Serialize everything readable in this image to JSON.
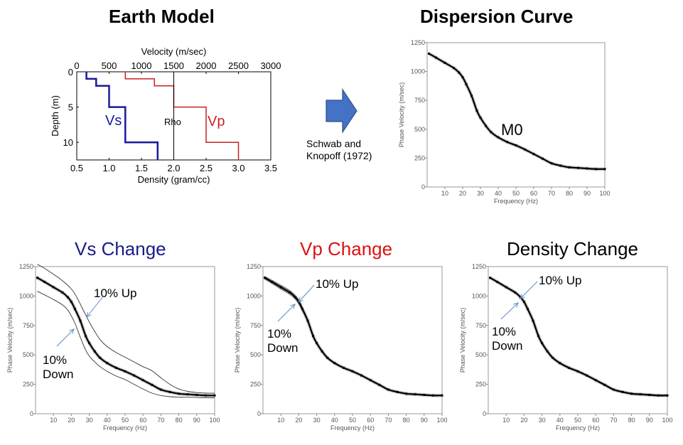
{
  "titles": {
    "earth_model": "Earth Model",
    "dispersion_curve": "Dispersion Curve",
    "vs_change": "Vs Change",
    "vp_change": "Vp Change",
    "density_change": "Density Change"
  },
  "colors": {
    "vs": "#1a1a9c",
    "vp": "#cc2020",
    "arrow_fill": "#4472c4",
    "annotation_arrow": "#5b8cc8",
    "vs_title": "#1a1a8a",
    "vp_title": "#dd1111",
    "density_title": "#000000"
  },
  "method": {
    "line1": "Schwab and",
    "line2": "Knopoff (1972)"
  },
  "chart_data": [
    {
      "id": "earth_model",
      "type": "line",
      "title": "Earth Model",
      "xlabel_top": "Velocity (m/sec)",
      "xlabel_bottom": "Density (gram/cc)",
      "ylabel": "Depth (m)",
      "x_top_range": [
        0,
        3000
      ],
      "x_top_ticks": [
        "0",
        "500",
        "1000",
        "1500",
        "2000",
        "2500",
        "3000"
      ],
      "x_bottom_range": [
        0.5,
        3.5
      ],
      "x_bottom_ticks": [
        "0.5",
        "1.0",
        "1.5",
        "2.0",
        "2.5",
        "3.0",
        "3.5"
      ],
      "y_range": [
        0,
        12.5
      ],
      "y_ticks": [
        "0",
        "5",
        "10"
      ],
      "y_inverted": true,
      "series": [
        {
          "name": "Vs",
          "label": "Vs",
          "axis": "velocity",
          "points": [
            [
              150,
              0
            ],
            [
              150,
              1
            ],
            [
              300,
              1
            ],
            [
              300,
              2
            ],
            [
              500,
              2
            ],
            [
              500,
              5
            ],
            [
              750,
              5
            ],
            [
              750,
              10
            ],
            [
              1250,
              10
            ],
            [
              1250,
              12.5
            ]
          ]
        },
        {
          "name": "Vp",
          "label": "Vp",
          "axis": "velocity",
          "points": [
            [
              750,
              0
            ],
            [
              750,
              1
            ],
            [
              1200,
              1
            ],
            [
              1200,
              2
            ],
            [
              1500,
              2
            ],
            [
              1500,
              5
            ],
            [
              2000,
              5
            ],
            [
              2000,
              10
            ],
            [
              2500,
              10
            ],
            [
              2500,
              12.5
            ]
          ]
        },
        {
          "name": "Rho",
          "label": "Rho",
          "axis": "density",
          "points": [
            [
              2.0,
              0
            ],
            [
              2.0,
              12.5
            ]
          ]
        }
      ]
    },
    {
      "id": "dispersion_curve",
      "type": "line",
      "title": "Dispersion Curve",
      "xlabel": "Frequency (Hz)",
      "ylabel": "Phase Velocity (m/sec)",
      "xlim": [
        0,
        100
      ],
      "ylim": [
        0,
        1250
      ],
      "x_ticks": [
        "10",
        "20",
        "30",
        "40",
        "50",
        "60",
        "70",
        "80",
        "90",
        "100"
      ],
      "y_ticks": [
        "0",
        "250",
        "500",
        "750",
        "1000",
        "1250"
      ],
      "annotation": "M0",
      "series": [
        {
          "name": "M0",
          "x": [
            1,
            5,
            10,
            15,
            18,
            20,
            22,
            25,
            28,
            30,
            33,
            36,
            40,
            45,
            50,
            55,
            60,
            65,
            70,
            75,
            80,
            85,
            90,
            95,
            100
          ],
          "y": [
            1155,
            1120,
            1075,
            1030,
            990,
            950,
            890,
            790,
            660,
            600,
            530,
            475,
            430,
            390,
            360,
            325,
            285,
            245,
            205,
            185,
            170,
            165,
            160,
            155,
            155
          ]
        }
      ]
    },
    {
      "id": "vs_change",
      "type": "line",
      "title": "Vs Change",
      "xlabel": "Frequency (Hz)",
      "ylabel": "Phase Velocity (m/sec)",
      "xlim": [
        0,
        100
      ],
      "ylim": [
        0,
        1250
      ],
      "x_ticks": [
        "10",
        "20",
        "30",
        "40",
        "50",
        "60",
        "70",
        "80",
        "90",
        "100"
      ],
      "y_ticks": [
        "0",
        "250",
        "500",
        "750",
        "1000",
        "1250"
      ],
      "annotations": [
        "10% Up",
        "10%",
        "Down"
      ],
      "series": [
        {
          "name": "M0",
          "x": [
            1,
            5,
            10,
            15,
            18,
            20,
            22,
            25,
            28,
            30,
            33,
            36,
            40,
            45,
            50,
            55,
            60,
            65,
            70,
            75,
            80,
            85,
            90,
            95,
            100
          ],
          "y": [
            1155,
            1120,
            1075,
            1030,
            990,
            950,
            890,
            790,
            660,
            600,
            530,
            475,
            430,
            390,
            360,
            325,
            285,
            245,
            205,
            185,
            170,
            165,
            160,
            155,
            155
          ]
        },
        {
          "name": "10% Up",
          "x": [
            1,
            5,
            10,
            15,
            20,
            23,
            26,
            30,
            33,
            36,
            40,
            45,
            50,
            55,
            60,
            65,
            70,
            75,
            80,
            85,
            90,
            95,
            100
          ],
          "y": [
            1270,
            1235,
            1185,
            1130,
            1060,
            990,
            900,
            780,
            700,
            630,
            570,
            520,
            480,
            440,
            400,
            365,
            305,
            250,
            210,
            190,
            180,
            175,
            175
          ]
        },
        {
          "name": "10% Down",
          "x": [
            1,
            5,
            10,
            15,
            18,
            20,
            22,
            25,
            28,
            30,
            33,
            36,
            40,
            45,
            50,
            55,
            60,
            65,
            70,
            75,
            80,
            85,
            90,
            95,
            100
          ],
          "y": [
            1040,
            1010,
            970,
            925,
            880,
            830,
            770,
            650,
            540,
            490,
            440,
            400,
            360,
            320,
            290,
            250,
            210,
            175,
            155,
            145,
            140,
            140,
            138,
            135,
            135
          ]
        }
      ]
    },
    {
      "id": "vp_change",
      "type": "line",
      "title": "Vp Change",
      "xlabel": "Frequency (Hz)",
      "ylabel": "Phase Velocity (m/sec)",
      "xlim": [
        0,
        100
      ],
      "ylim": [
        0,
        1250
      ],
      "x_ticks": [
        "10",
        "20",
        "30",
        "40",
        "50",
        "60",
        "70",
        "80",
        "90",
        "100"
      ],
      "y_ticks": [
        "0",
        "250",
        "500",
        "750",
        "1000",
        "1250"
      ],
      "annotations": [
        "10% Up",
        "10%",
        "Down"
      ],
      "series": [
        {
          "name": "M0",
          "x": [
            1,
            5,
            10,
            15,
            18,
            20,
            22,
            25,
            28,
            30,
            33,
            36,
            40,
            45,
            50,
            55,
            60,
            65,
            70,
            75,
            80,
            85,
            90,
            95,
            100
          ],
          "y": [
            1155,
            1120,
            1075,
            1030,
            990,
            950,
            890,
            790,
            660,
            600,
            530,
            475,
            430,
            390,
            360,
            325,
            285,
            245,
            205,
            185,
            170,
            165,
            160,
            155,
            155
          ]
        },
        {
          "name": "10% Up",
          "x": [
            1,
            5,
            10,
            15,
            18,
            20,
            22,
            25,
            28,
            30,
            33,
            36,
            40,
            45,
            50,
            55,
            60,
            65,
            70,
            75,
            80,
            85,
            90,
            95,
            100
          ],
          "y": [
            1165,
            1132,
            1090,
            1045,
            1005,
            965,
            900,
            795,
            662,
            602,
            532,
            476,
            431,
            391,
            361,
            326,
            286,
            246,
            206,
            186,
            171,
            166,
            161,
            156,
            156
          ]
        },
        {
          "name": "10% Down",
          "x": [
            1,
            5,
            10,
            15,
            18,
            20,
            22,
            25,
            28,
            30,
            33,
            36,
            40,
            45,
            50,
            55,
            60,
            65,
            70,
            75,
            80,
            85,
            90,
            95,
            100
          ],
          "y": [
            1145,
            1108,
            1060,
            1015,
            975,
            935,
            880,
            785,
            658,
            598,
            528,
            474,
            429,
            389,
            359,
            324,
            284,
            244,
            204,
            184,
            169,
            164,
            159,
            154,
            154
          ]
        }
      ]
    },
    {
      "id": "density_change",
      "type": "line",
      "title": "Density Change",
      "xlabel": "Frequency (Hz)",
      "ylabel": "Phase Velocity (m/sec)",
      "xlim": [
        0,
        100
      ],
      "ylim": [
        0,
        1250
      ],
      "x_ticks": [
        "10",
        "20",
        "30",
        "40",
        "50",
        "60",
        "70",
        "80",
        "90",
        "100"
      ],
      "y_ticks": [
        "0",
        "250",
        "500",
        "750",
        "1000",
        "1250"
      ],
      "annotations": [
        "10% Up",
        "10%",
        "Down"
      ],
      "series": [
        {
          "name": "M0",
          "x": [
            1,
            5,
            10,
            15,
            18,
            20,
            22,
            25,
            28,
            30,
            33,
            36,
            40,
            45,
            50,
            55,
            60,
            65,
            70,
            75,
            80,
            85,
            90,
            95,
            100
          ],
          "y": [
            1155,
            1120,
            1075,
            1030,
            990,
            950,
            890,
            790,
            660,
            600,
            530,
            475,
            430,
            390,
            360,
            325,
            285,
            245,
            205,
            185,
            170,
            165,
            160,
            155,
            155
          ]
        },
        {
          "name": "10% Up",
          "x": [
            1,
            5,
            10,
            15,
            18,
            20,
            22,
            25,
            28,
            30,
            33,
            36,
            40,
            45,
            50,
            55,
            60,
            65,
            70,
            75,
            80,
            85,
            90,
            95,
            100
          ],
          "y": [
            1158,
            1123,
            1078,
            1033,
            993,
            953,
            893,
            793,
            663,
            603,
            533,
            478,
            433,
            393,
            363,
            328,
            288,
            248,
            208,
            188,
            173,
            168,
            163,
            158,
            158
          ]
        },
        {
          "name": "10% Down",
          "x": [
            1,
            5,
            10,
            15,
            18,
            20,
            22,
            25,
            28,
            30,
            33,
            36,
            40,
            45,
            50,
            55,
            60,
            65,
            70,
            75,
            80,
            85,
            90,
            95,
            100
          ],
          "y": [
            1152,
            1117,
            1072,
            1027,
            987,
            947,
            887,
            787,
            657,
            597,
            527,
            472,
            427,
            387,
            357,
            322,
            282,
            242,
            202,
            182,
            167,
            162,
            157,
            152,
            152
          ]
        }
      ]
    }
  ]
}
